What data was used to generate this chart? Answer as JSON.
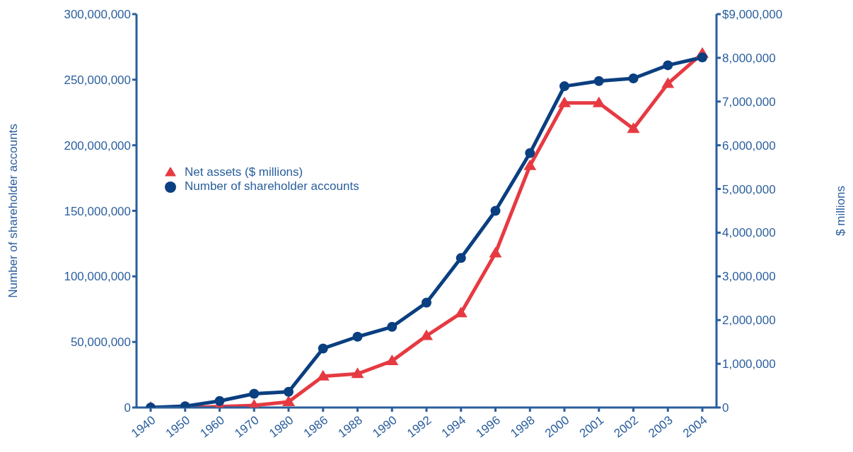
{
  "chart_data": {
    "type": "line",
    "categories": [
      "1940",
      "1950",
      "1960",
      "1970",
      "1980",
      "1986",
      "1988",
      "1990",
      "1992",
      "1994",
      "1996",
      "1998",
      "2000",
      "2001",
      "2002",
      "2003",
      "2004"
    ],
    "series": [
      {
        "name": "Net assets ($ millions)",
        "color": "#e63a42",
        "marker": "triangle",
        "axis": "y2",
        "values": [
          0,
          0,
          20000,
          50000,
          130000,
          716000,
          770000,
          1065000,
          1640000,
          2160000,
          3530000,
          5530000,
          6970000,
          6970000,
          6380000,
          7410000,
          8100000
        ]
      },
      {
        "name": "Number of shareholder accounts",
        "color": "#0a3f80",
        "marker": "circle",
        "values": [
          0,
          1000000,
          5000000,
          10500000,
          12000000,
          45000000,
          54000000,
          61500000,
          80000000,
          114000000,
          150000000,
          194000000,
          245000000,
          249000000,
          251000000,
          261000000,
          267000000
        ]
      }
    ],
    "ylabel": "Number of shareholder accounts",
    "y2label": "$ millions",
    "ylim": [
      0,
      300000000
    ],
    "yticks": [
      0,
      {
        "value": 50000000,
        "label": "50,000,000"
      },
      {
        "value": 100000000,
        "label": "100,000,000"
      },
      {
        "value": 150000000,
        "label": "150,000,000"
      },
      {
        "value": 200000000,
        "label": "200,000,000"
      },
      {
        "value": 250000000,
        "label": "250,000,000"
      },
      {
        "value": 300000000,
        "label": "300,000,000"
      }
    ],
    "y2lim": [
      0,
      9000000
    ],
    "y2ticks": [
      0,
      {
        "value": 1000000,
        "label": "1,000,000"
      },
      {
        "value": 2000000,
        "label": "2,000,000"
      },
      {
        "value": 3000000,
        "label": "3,000,000"
      },
      {
        "value": 4000000,
        "label": "4,000,000"
      },
      {
        "value": 5000000,
        "label": "5,000,000"
      },
      {
        "value": 6000000,
        "label": "6,000,000"
      },
      {
        "value": 7000000,
        "label": "7,000,000"
      },
      {
        "value": 8000000,
        "label": "8,000,000"
      },
      {
        "value": 9000000,
        "label": "$9,000,000"
      }
    ],
    "grid": false,
    "legend": "left",
    "line_style": "solid"
  }
}
